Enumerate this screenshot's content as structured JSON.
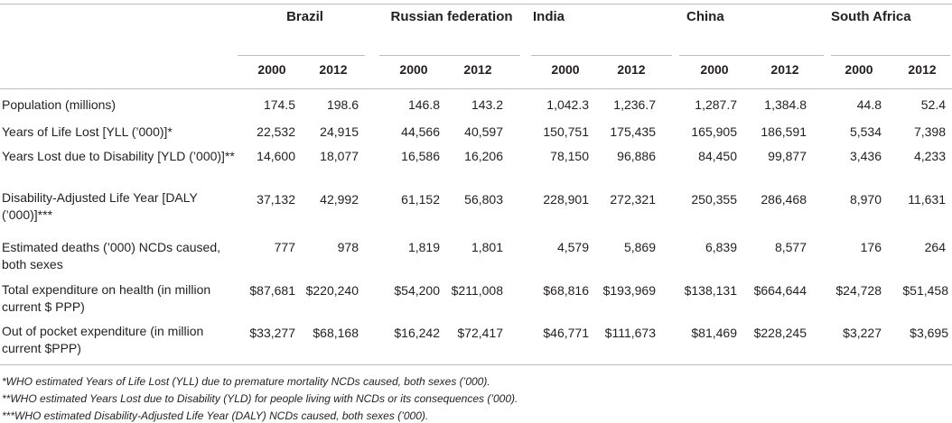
{
  "countries": [
    "Brazil",
    "Russian federation",
    "India",
    "China",
    "South Africa"
  ],
  "years": [
    "2000",
    "2012"
  ],
  "rows": [
    {
      "label": "Population (millions)",
      "values": [
        "174.5",
        "198.6",
        "146.8",
        "143.2",
        "1,042.3",
        "1,236.7",
        "1,287.7",
        "1,384.8",
        "44.8",
        "52.4"
      ]
    },
    {
      "label": "Years of Life Lost [YLL (’000)]*",
      "values": [
        "22,532",
        "24,915",
        "44,566",
        "40,597",
        "150,751",
        "175,435",
        "165,905",
        "186,591",
        "5,534",
        "7,398"
      ]
    },
    {
      "label": "Years Lost due to Disability [YLD (’000)]**",
      "values": [
        "14,600",
        "18,077",
        "16,586",
        "16,206",
        "78,150",
        "96,886",
        "84,450",
        "99,877",
        "3,436",
        "4,233"
      ]
    },
    {
      "label": "Disability-Adjusted Life Year [DALY (’000)]***",
      "values": [
        "37,132",
        "42,992",
        "61,152",
        "56,803",
        "228,901",
        "272,321",
        "250,355",
        "286,468",
        "8,970",
        "11,631"
      ]
    },
    {
      "label": "Estimated deaths (’000) NCDs caused, both sexes",
      "values": [
        "777",
        "978",
        "1,819",
        "1,801",
        "4,579",
        "5,869",
        "6,839",
        "8,577",
        "176",
        "264"
      ]
    },
    {
      "label": "Total expenditure on health (in million current $ PPP)",
      "values": [
        "$87,681",
        "$220,240",
        "$54,200",
        "$211,008",
        "$68,816",
        "$193,969",
        "$138,131",
        "$664,644",
        "$24,728",
        "$51,458"
      ]
    },
    {
      "label": "Out of pocket expenditure (in million current $PPP)",
      "values": [
        "$33,277",
        "$68,168",
        "$16,242",
        "$72,417",
        "$46,771",
        "$111,673",
        "$81,469",
        "$228,245",
        "$3,227",
        "$3,695"
      ]
    }
  ],
  "footnotes": [
    "*WHO estimated Years of Life Lost (YLL) due to premature mortality NCDs caused, both sexes (’000).",
    "**WHO estimated Years Lost due to Disability (YLD) for people living with NCDs or its consequences (’000).",
    "***WHO estimated Disability-Adjusted Life Year (DALY) NCDs caused, both sexes (’000)."
  ]
}
